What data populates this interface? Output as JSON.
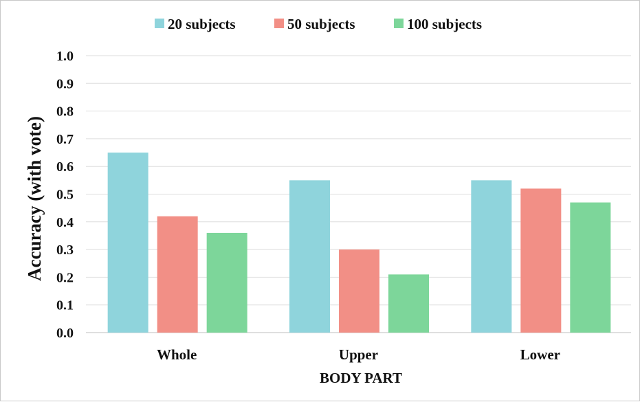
{
  "chart_data": {
    "type": "bar",
    "categories": [
      "Whole",
      "Upper",
      "Lower"
    ],
    "series": [
      {
        "name": "20 subjects",
        "values": [
          0.65,
          0.55,
          0.55
        ],
        "color": "#8fd4dc"
      },
      {
        "name": "50 subjects",
        "values": [
          0.42,
          0.3,
          0.52
        ],
        "color": "#f28f86"
      },
      {
        "name": "100 subjects",
        "values": [
          0.36,
          0.21,
          0.47
        ],
        "color": "#7dd69a"
      }
    ],
    "xlabel": "BODY PART",
    "ylabel": "Accuracy (with vote)",
    "ylim": [
      0,
      1.0
    ],
    "yticks": [
      "0.0",
      "0.1",
      "0.2",
      "0.3",
      "0.4",
      "0.5",
      "0.6",
      "0.7",
      "0.8",
      "0.9",
      "1.0"
    ],
    "grid": true,
    "legend_position": "top"
  }
}
